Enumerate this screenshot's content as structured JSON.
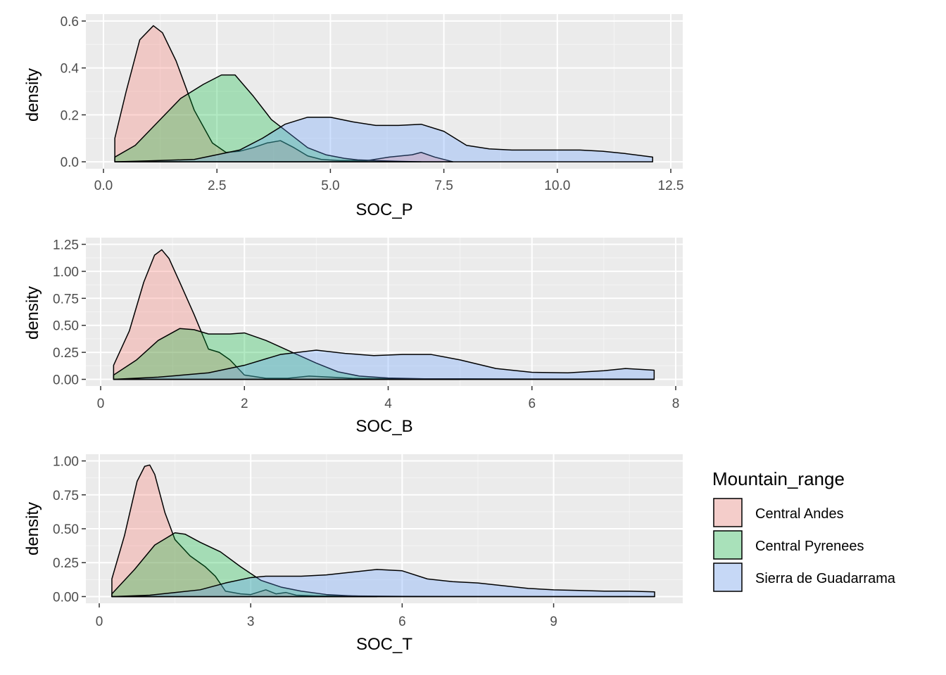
{
  "chart_data": [
    {
      "type": "area",
      "subtype": "density",
      "xlabel": "SOC_P",
      "ylabel": "density",
      "xlim": [
        0,
        12.5
      ],
      "ylim": [
        0,
        0.6
      ],
      "xticks": [
        0,
        2.5,
        5,
        7.5,
        10,
        12.5
      ],
      "xtick_labels": [
        "0.0",
        "2.5",
        "5.0",
        "7.5",
        "10.0",
        "12.5"
      ],
      "yticks": [
        0,
        0.2,
        0.4,
        0.6
      ],
      "ytick_labels": [
        "0.0",
        "0.2",
        "0.4",
        "0.6"
      ],
      "grid": true,
      "series": [
        {
          "name": "Central Andes",
          "x": [
            0.25,
            0.5,
            0.8,
            1.1,
            1.3,
            1.6,
            2.0,
            2.4,
            2.7,
            3.0,
            3.3,
            3.6,
            3.9,
            4.2,
            4.5,
            4.8,
            5.2,
            5.8,
            6.3,
            6.8,
            7.0,
            7.3,
            7.7
          ],
          "y": [
            0.1,
            0.3,
            0.52,
            0.58,
            0.55,
            0.43,
            0.22,
            0.08,
            0.04,
            0.045,
            0.06,
            0.08,
            0.09,
            0.06,
            0.025,
            0.01,
            0.005,
            0.005,
            0.02,
            0.03,
            0.04,
            0.02,
            0.0
          ]
        },
        {
          "name": "Central Pyrenees",
          "x": [
            0.25,
            0.7,
            1.2,
            1.7,
            2.2,
            2.6,
            2.9,
            3.3,
            3.7,
            4.1,
            4.5,
            4.9,
            5.3,
            5.6,
            6.0,
            6.5,
            7.0
          ],
          "y": [
            0.02,
            0.07,
            0.17,
            0.27,
            0.33,
            0.37,
            0.37,
            0.28,
            0.18,
            0.12,
            0.06,
            0.03,
            0.015,
            0.008,
            0.005,
            0.002,
            0.0
          ]
        },
        {
          "name": "Sierra de Guadarrama",
          "x": [
            0.25,
            1.0,
            2.0,
            3.0,
            3.5,
            4.0,
            4.5,
            5.0,
            5.5,
            6.0,
            6.5,
            7.0,
            7.5,
            8.0,
            8.5,
            9.0,
            9.5,
            10.0,
            10.5,
            11.0,
            11.5,
            12.1
          ],
          "y": [
            0.0,
            0.004,
            0.01,
            0.05,
            0.1,
            0.16,
            0.19,
            0.19,
            0.17,
            0.155,
            0.155,
            0.16,
            0.13,
            0.07,
            0.055,
            0.05,
            0.05,
            0.05,
            0.05,
            0.045,
            0.035,
            0.02
          ]
        }
      ]
    },
    {
      "type": "area",
      "subtype": "density",
      "xlabel": "SOC_B",
      "ylabel": "density",
      "xlim": [
        0,
        8
      ],
      "ylim": [
        0,
        1.25
      ],
      "xticks": [
        0,
        2,
        4,
        6,
        8
      ],
      "xtick_labels": [
        "0",
        "2",
        "4",
        "6",
        "8"
      ],
      "yticks": [
        0,
        0.25,
        0.5,
        0.75,
        1.0,
        1.25
      ],
      "ytick_labels": [
        "0.00",
        "0.25",
        "0.50",
        "0.75",
        "1.00",
        "1.25"
      ],
      "grid": true,
      "series": [
        {
          "name": "Central Andes",
          "x": [
            0.18,
            0.4,
            0.6,
            0.75,
            0.85,
            0.95,
            1.1,
            1.3,
            1.5,
            1.65,
            1.8,
            2.0,
            2.3,
            2.6,
            2.9,
            3.2,
            3.5,
            4.0,
            5.0,
            6.0,
            7.7
          ],
          "y": [
            0.13,
            0.45,
            0.9,
            1.15,
            1.2,
            1.12,
            0.9,
            0.6,
            0.28,
            0.25,
            0.18,
            0.04,
            0.01,
            0.01,
            0.03,
            0.02,
            0.01,
            0.005,
            0.005,
            0.003,
            0.002
          ]
        },
        {
          "name": "Central Pyrenees",
          "x": [
            0.18,
            0.5,
            0.8,
            1.1,
            1.3,
            1.5,
            1.8,
            2.0,
            2.3,
            2.7,
            3.0,
            3.3,
            3.6,
            4.0,
            4.5,
            5.0
          ],
          "y": [
            0.04,
            0.18,
            0.36,
            0.47,
            0.46,
            0.42,
            0.42,
            0.43,
            0.36,
            0.24,
            0.15,
            0.07,
            0.03,
            0.012,
            0.005,
            0.0
          ]
        },
        {
          "name": "Sierra de Guadarrama",
          "x": [
            0.18,
            0.8,
            1.5,
            2.0,
            2.5,
            3.0,
            3.4,
            3.8,
            4.2,
            4.6,
            5.0,
            5.5,
            6.0,
            6.5,
            7.0,
            7.3,
            7.7
          ],
          "y": [
            0.0,
            0.02,
            0.06,
            0.13,
            0.23,
            0.27,
            0.24,
            0.22,
            0.23,
            0.23,
            0.18,
            0.1,
            0.065,
            0.06,
            0.08,
            0.1,
            0.085
          ]
        }
      ]
    },
    {
      "type": "area",
      "subtype": "density",
      "xlabel": "SOC_T",
      "ylabel": "density",
      "xlim": [
        0,
        11
      ],
      "ylim": [
        0,
        1.0
      ],
      "xticks": [
        0,
        3,
        6,
        9
      ],
      "xtick_labels": [
        "0",
        "3",
        "6",
        "9"
      ],
      "yticks": [
        0,
        0.25,
        0.5,
        0.75,
        1.0
      ],
      "ytick_labels": [
        "0.00",
        "0.25",
        "0.50",
        "0.75",
        "1.00"
      ],
      "grid": true,
      "series": [
        {
          "name": "Central Andes",
          "x": [
            0.25,
            0.5,
            0.75,
            0.9,
            1.0,
            1.1,
            1.3,
            1.5,
            1.8,
            2.1,
            2.3,
            2.5,
            2.8,
            3.0,
            3.3,
            3.5,
            3.7,
            3.9,
            4.3,
            5.0,
            6.0,
            7.0,
            11.0
          ],
          "y": [
            0.13,
            0.45,
            0.85,
            0.96,
            0.97,
            0.9,
            0.62,
            0.42,
            0.3,
            0.22,
            0.15,
            0.04,
            0.02,
            0.015,
            0.05,
            0.02,
            0.03,
            0.01,
            0.005,
            0.005,
            0.002,
            0.001,
            0.0
          ]
        },
        {
          "name": "Central Pyrenees",
          "x": [
            0.25,
            0.7,
            1.1,
            1.5,
            1.7,
            2.0,
            2.4,
            2.8,
            3.2,
            3.6,
            4.0,
            4.5,
            5.0,
            5.5
          ],
          "y": [
            0.02,
            0.2,
            0.38,
            0.47,
            0.46,
            0.4,
            0.33,
            0.22,
            0.12,
            0.07,
            0.04,
            0.015,
            0.005,
            0.0
          ]
        },
        {
          "name": "Sierra de Guadarrama",
          "x": [
            0.25,
            1.0,
            2.0,
            2.5,
            3.0,
            3.3,
            3.6,
            4.0,
            4.5,
            5.0,
            5.5,
            6.0,
            6.5,
            7.0,
            7.5,
            8.0,
            8.5,
            9.0,
            9.5,
            10.0,
            10.5,
            11.0
          ],
          "y": [
            0.0,
            0.01,
            0.05,
            0.1,
            0.14,
            0.15,
            0.15,
            0.15,
            0.16,
            0.18,
            0.2,
            0.19,
            0.13,
            0.11,
            0.1,
            0.08,
            0.06,
            0.05,
            0.045,
            0.04,
            0.04,
            0.035
          ]
        }
      ]
    }
  ],
  "legend": {
    "title": "Mountain_range",
    "position": "right",
    "items": [
      {
        "label": "Central Andes",
        "color": "#F8766D"
      },
      {
        "label": "Central Pyrenees",
        "color": "#00BA38"
      },
      {
        "label": "Sierra de Guadarrama",
        "color": "#619CFF"
      }
    ]
  },
  "style": {
    "panel_background": "#EBEBEB",
    "grid_major": "#FFFFFF",
    "grid_minor": "#F5F5F5",
    "fill_opacity": 0.3,
    "outline": "#000000"
  }
}
